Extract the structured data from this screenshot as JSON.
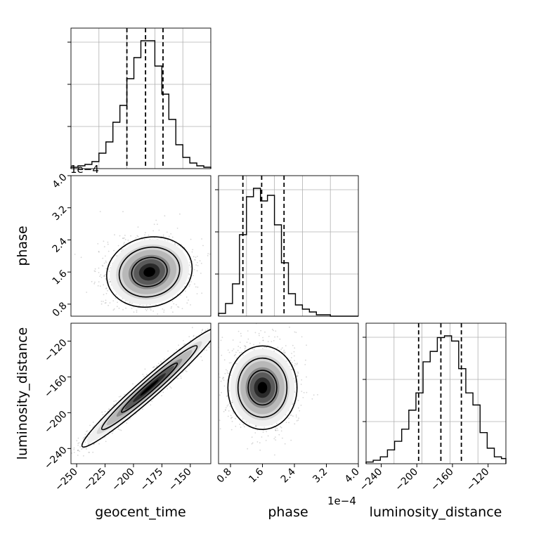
{
  "chart_data": [
    {
      "type": "histogram",
      "panel": "geocent_time marginal",
      "x_bin_edges": [
        -250,
        -244,
        -238,
        -232,
        -226,
        -220,
        -214,
        -208,
        -202,
        -196,
        -190,
        -184,
        -178,
        -172,
        -166,
        -160,
        -154,
        -148,
        -142,
        -136,
        -130
      ],
      "counts": [
        1,
        2,
        3,
        5,
        11,
        19,
        33,
        45,
        64,
        79,
        91,
        91,
        73,
        53,
        35,
        17,
        8,
        4,
        2,
        1
      ],
      "quantiles": [
        -202,
        -186,
        -171
      ]
    },
    {
      "type": "scatter",
      "panel": "phase vs geocent_time (2D histogram + contours)",
      "xlim": [
        -255,
        -132
      ],
      "ylim": [
        0.5,
        4.0
      ],
      "density_center": {
        "x": -186,
        "y": 1.6
      },
      "contour_levels": 3
    },
    {
      "type": "histogram",
      "panel": "phase marginal",
      "x_bin_edges": [
        0.5,
        0.675,
        0.85,
        1.025,
        1.2,
        1.375,
        1.55,
        1.725,
        1.9,
        2.075,
        2.25,
        2.425,
        2.6,
        2.775,
        2.95,
        3.125,
        3.3,
        3.475,
        3.65,
        3.825,
        4.0
      ],
      "counts": [
        2,
        9,
        23,
        58,
        85,
        91,
        82,
        86,
        65,
        38,
        16,
        8,
        5,
        3,
        1,
        1,
        0,
        0,
        0,
        0
      ],
      "quantiles": [
        1.11,
        1.58,
        2.14
      ]
    },
    {
      "type": "scatter",
      "panel": "luminosity_distance vs geocent_time (2D histogram + contours)",
      "xlim": [
        -255,
        -132
      ],
      "ylim": [
        -257,
        -100
      ],
      "density_center": {
        "x": -186,
        "y": -172
      },
      "correlation": "strong positive",
      "contour_levels": 3
    },
    {
      "type": "scatter",
      "panel": "luminosity_distance vs phase (2D histogram + contours)",
      "xlim": [
        0.5,
        4.0
      ],
      "ylim": [
        -257,
        -100
      ],
      "density_center": {
        "x": 1.6,
        "y": -172
      },
      "contour_levels": 3
    },
    {
      "type": "histogram",
      "panel": "luminosity_distance marginal",
      "x_bin_edges": [
        -257,
        -249,
        -241,
        -233,
        -225,
        -217,
        -209,
        -201,
        -193,
        -185,
        -177,
        -169,
        -161,
        -153,
        -145,
        -137,
        -129,
        -121,
        -113,
        -105,
        -100
      ],
      "counts": [
        1,
        2,
        4,
        8,
        13,
        20,
        31,
        41,
        59,
        65,
        73,
        74,
        71,
        55,
        41,
        34,
        18,
        9,
        4,
        3
      ],
      "quantiles": [
        -198,
        -173,
        -150
      ]
    }
  ],
  "labels": {
    "x_bottom_1": "geocent_time",
    "x_bottom_2": "phase",
    "x_bottom_3": "luminosity_distance",
    "y_left_2": "phase",
    "y_left_3": "luminosity_distance",
    "offset_phase_top": "1e−4",
    "offset_phase_bottom": "1e−4"
  },
  "ticks": {
    "geocent_x": [
      {
        "v": -250,
        "t": "−250"
      },
      {
        "v": -225,
        "t": "−225"
      },
      {
        "v": -200,
        "t": "−200"
      },
      {
        "v": -175,
        "t": "−175"
      },
      {
        "v": -150,
        "t": "−150"
      }
    ],
    "phase": [
      {
        "v": 0.8,
        "t": "0.8"
      },
      {
        "v": 1.6,
        "t": "1.6"
      },
      {
        "v": 2.4,
        "t": "2.4"
      },
      {
        "v": 3.2,
        "t": "3.2"
      },
      {
        "v": 4.0,
        "t": "4.0"
      }
    ],
    "lumdist": [
      {
        "v": -240,
        "t": "−240"
      },
      {
        "v": -200,
        "t": "−200"
      },
      {
        "v": -160,
        "t": "−160"
      },
      {
        "v": -120,
        "t": "−120"
      }
    ]
  },
  "colors": {
    "line": "#000000",
    "grid": "#b0b0b0",
    "points": "#8c8c8c",
    "frame": "#000000"
  }
}
